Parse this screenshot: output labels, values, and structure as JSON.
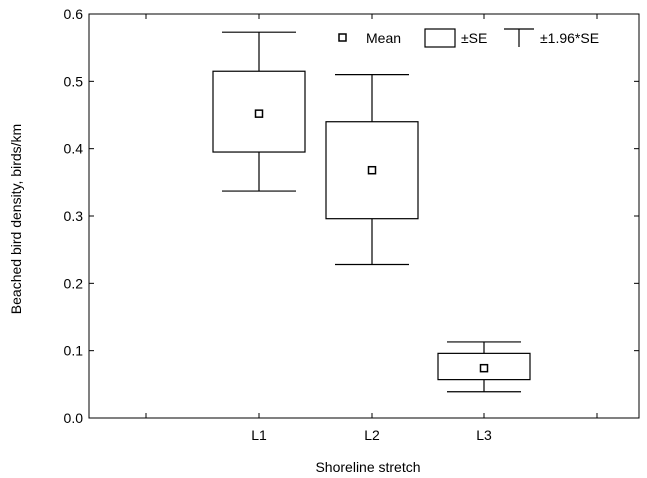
{
  "chart_data": {
    "type": "box",
    "categories": [
      "L1",
      "L2",
      "L3"
    ],
    "series": [
      {
        "category": "L1",
        "mean": 0.452,
        "se_low": 0.395,
        "se_high": 0.515,
        "ci_low": 0.337,
        "ci_high": 0.573
      },
      {
        "category": "L2",
        "mean": 0.368,
        "se_low": 0.296,
        "se_high": 0.44,
        "ci_low": 0.228,
        "ci_high": 0.51
      },
      {
        "category": "L3",
        "mean": 0.074,
        "se_low": 0.057,
        "se_high": 0.096,
        "ci_low": 0.039,
        "ci_high": 0.113
      }
    ],
    "xlabel": "Shoreline stretch",
    "ylabel": "Beached bird density, birds/km",
    "ylim": [
      0.0,
      0.6
    ],
    "yticks": [
      "0.0",
      "0.1",
      "0.2",
      "0.3",
      "0.4",
      "0.5",
      "0.6"
    ],
    "legend": {
      "position": "top-right",
      "entries": [
        "Mean",
        "±SE",
        "±1.96*SE"
      ]
    },
    "grid": false
  }
}
